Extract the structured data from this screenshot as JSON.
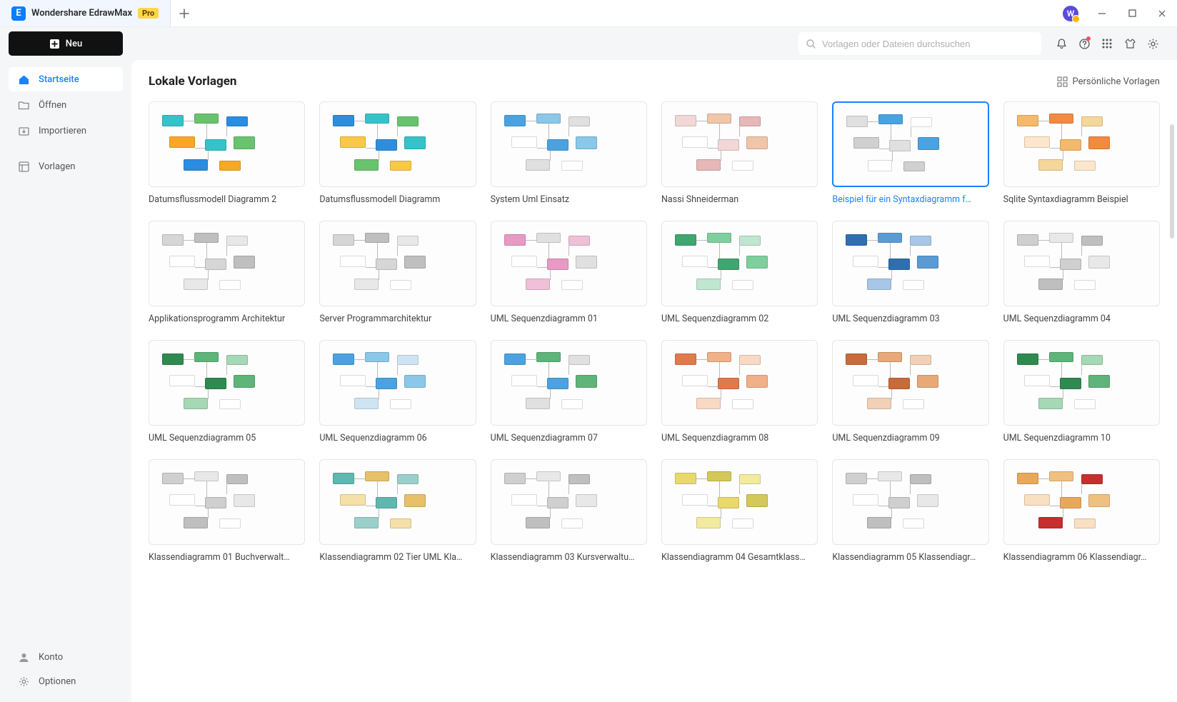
{
  "app": {
    "title": "Wondershare EdrawMax",
    "badge": "Pro",
    "avatar_letter": "W"
  },
  "window_controls": {
    "min": "−",
    "max": "☐",
    "close": "✕"
  },
  "topbar": {
    "search_placeholder": "Vorlagen oder Dateien durchsuchen"
  },
  "sidebar": {
    "neu_label": "Neu",
    "items": [
      {
        "label": "Startseite",
        "icon": "home",
        "active": true
      },
      {
        "label": "Öffnen",
        "icon": "folder",
        "active": false
      },
      {
        "label": "Importieren",
        "icon": "import",
        "active": false
      }
    ],
    "divider_items": [
      {
        "label": "Vorlagen",
        "icon": "templates",
        "active": false
      }
    ],
    "bottom_items": [
      {
        "label": "Konto",
        "icon": "user"
      },
      {
        "label": "Optionen",
        "icon": "gear"
      }
    ]
  },
  "content": {
    "heading": "Lokale Vorlagen",
    "personal_label": "Persönliche Vorlagen",
    "selected_index": 4,
    "templates": [
      {
        "title": "Datumsflussmodell Diagramm 2",
        "palette": [
          "#36c2c9",
          "#69c36e",
          "#2a8de0",
          "#f9a825"
        ]
      },
      {
        "title": "Datumsflussmodell Diagramm",
        "palette": [
          "#2f8edb",
          "#36c2c9",
          "#69c36e",
          "#f9c846"
        ]
      },
      {
        "title": "System Uml Einsatz",
        "palette": [
          "#4aa3e0",
          "#8ac7e8",
          "#e0e0e0",
          "#ffffff"
        ]
      },
      {
        "title": "Nassi Shneiderman",
        "palette": [
          "#f2d7d7",
          "#f0c5a8",
          "#e6b8b8",
          "#ffffff"
        ]
      },
      {
        "title": "Beispiel für ein Syntaxdiagramm f…",
        "palette": [
          "#e0e0e0",
          "#4aa3e0",
          "#ffffff",
          "#d0d0d0"
        ]
      },
      {
        "title": "Sqlite Syntaxdiagramm Beispiel",
        "palette": [
          "#f5b96b",
          "#f28a3f",
          "#f5d79b",
          "#fce7cc"
        ]
      },
      {
        "title": "Applikationsprogramm Architektur",
        "palette": [
          "#d6d6d6",
          "#bfbfbf",
          "#e8e8e8",
          "#ffffff"
        ]
      },
      {
        "title": "Server Programmarchitektur",
        "palette": [
          "#d6d6d6",
          "#bfbfbf",
          "#e8e8e8",
          "#ffffff"
        ]
      },
      {
        "title": "UML Sequenzdiagramm 01",
        "palette": [
          "#e89ac5",
          "#e0e0e0",
          "#f0c0d8",
          "#ffffff"
        ]
      },
      {
        "title": "UML Sequenzdiagramm 02",
        "palette": [
          "#3fa66f",
          "#7fcf9e",
          "#c0e6cf",
          "#ffffff"
        ]
      },
      {
        "title": "UML Sequenzdiagramm 03",
        "palette": [
          "#2f6fb0",
          "#5a9bd4",
          "#a8c7e8",
          "#ffffff"
        ]
      },
      {
        "title": "UML Sequenzdiagramm 04",
        "palette": [
          "#cfcfcf",
          "#e8e8e8",
          "#bfbfbf",
          "#ffffff"
        ]
      },
      {
        "title": "UML Sequenzdiagramm 05",
        "palette": [
          "#2f8a4f",
          "#5fb47a",
          "#a5d8b4",
          "#ffffff"
        ]
      },
      {
        "title": "UML Sequenzdiagramm 06",
        "palette": [
          "#4aa3e0",
          "#8ac7e8",
          "#cfe4f3",
          "#ffffff"
        ]
      },
      {
        "title": "UML Sequenzdiagramm 07",
        "palette": [
          "#4aa3e0",
          "#5fb47a",
          "#e0e0e0",
          "#ffffff"
        ]
      },
      {
        "title": "UML Sequenzdiagramm 08",
        "palette": [
          "#e07a4a",
          "#f0b088",
          "#f8d9c4",
          "#ffffff"
        ]
      },
      {
        "title": "UML Sequenzdiagramm 09",
        "palette": [
          "#c96a3a",
          "#e8a878",
          "#f2d0b8",
          "#ffffff"
        ]
      },
      {
        "title": "UML Sequenzdiagramm 10",
        "palette": [
          "#2f8a4f",
          "#5fb47a",
          "#a5d8b4",
          "#ffffff"
        ]
      },
      {
        "title": "Klassendiagramm 01 Buchverwalt…",
        "palette": [
          "#cfcfcf",
          "#e8e8e8",
          "#bfbfbf",
          "#ffffff"
        ]
      },
      {
        "title": "Klassendiagramm 02 Tier UML Kla…",
        "palette": [
          "#5fb8b0",
          "#e8c06a",
          "#9ad0c9",
          "#f5e0a8"
        ]
      },
      {
        "title": "Klassendiagramm 03 Kursverwaltu…",
        "palette": [
          "#cfcfcf",
          "#e8e8e8",
          "#bfbfbf",
          "#ffffff"
        ]
      },
      {
        "title": "Klassendiagramm 04 Gesamtklass…",
        "palette": [
          "#e8d96a",
          "#d4c85a",
          "#f2ea9e",
          "#ffffff"
        ]
      },
      {
        "title": "Klassendiagramm 05 Klassendiagr…",
        "palette": [
          "#cfcfcf",
          "#e8e8e8",
          "#bfbfbf",
          "#ffffff"
        ]
      },
      {
        "title": "Klassendiagramm 06 Klassendiagr…",
        "palette": [
          "#e8a85a",
          "#f0c080",
          "#c72e2e",
          "#f8e0c0"
        ]
      }
    ]
  },
  "colors": {
    "accent": "#1a82ff",
    "bg": "#f5f6f8",
    "text": "#333333",
    "border": "#e6e6e6"
  }
}
